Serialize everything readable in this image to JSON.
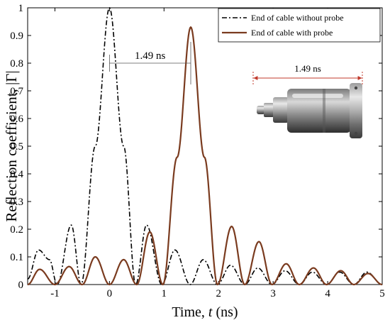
{
  "chart_data": {
    "type": "line",
    "xlabel": "Time, t (ns)",
    "ylabel": "Reflection coefficient, |Γ|",
    "xlim": [
      -1.5,
      5
    ],
    "ylim": [
      0,
      1
    ],
    "xticks": [
      -1,
      0,
      1,
      2,
      3,
      4,
      5
    ],
    "xtick_labels": [
      "-1",
      "0",
      "1",
      "2",
      "3",
      "4",
      "5"
    ],
    "yticks": [
      0,
      0.1,
      0.2,
      0.3,
      0.4,
      0.5,
      0.6,
      0.7,
      0.8,
      0.9,
      1
    ],
    "ytick_labels": [
      "0",
      "0.1",
      "0.2",
      "0.3",
      "0.4",
      "0.5",
      "0.6",
      "0.7",
      "0.8",
      "0.9",
      "1"
    ],
    "grid": false,
    "legend_position": "top-right",
    "series": [
      {
        "name": "End of cable without probe",
        "color": "#000000",
        "style": "dash-dot",
        "x": [
          -1.5,
          -1.3,
          -1.1,
          -0.96,
          -0.7,
          -0.52,
          -0.26,
          0.0,
          0.26,
          0.48,
          0.68,
          0.96,
          1.2,
          1.48,
          1.72,
          1.98,
          2.22,
          2.48,
          2.72,
          2.98,
          3.22,
          3.48,
          3.72,
          3.98,
          4.22,
          4.48,
          4.72,
          5.0
        ],
        "y": [
          0.02,
          0.125,
          0.09,
          0.0,
          0.215,
          0.0,
          0.5,
          1.0,
          0.5,
          0.0,
          0.215,
          0.0,
          0.125,
          0.0,
          0.09,
          0.0,
          0.07,
          0.0,
          0.06,
          0.0,
          0.05,
          0.0,
          0.045,
          0.0,
          0.045,
          0.0,
          0.045,
          0.0
        ]
      },
      {
        "name": "End of cable with probe",
        "color": "#7a3b1f",
        "style": "solid",
        "x": [
          -1.5,
          -1.28,
          -1.0,
          -0.74,
          -0.5,
          -0.26,
          0.0,
          0.26,
          0.5,
          0.74,
          0.98,
          1.24,
          1.49,
          1.74,
          1.98,
          2.24,
          2.48,
          2.74,
          2.98,
          3.24,
          3.48,
          3.74,
          3.98,
          4.24,
          4.48,
          4.74,
          5.0
        ],
        "y": [
          0.0,
          0.055,
          0.0,
          0.065,
          0.0,
          0.1,
          0.0,
          0.09,
          0.0,
          0.19,
          0.0,
          0.46,
          0.93,
          0.46,
          0.0,
          0.21,
          0.0,
          0.155,
          0.0,
          0.075,
          0.0,
          0.06,
          0.0,
          0.05,
          0.0,
          0.04,
          0.0
        ]
      }
    ],
    "annotations": [
      {
        "text": "1.49 ns",
        "from_x": 0,
        "to_x": 1.49,
        "y": 0.8
      },
      {
        "text": "1.49 ns",
        "target": "photo"
      }
    ]
  },
  "photo": {
    "label": "1.49 ns",
    "description_icon": "probe-photo"
  }
}
